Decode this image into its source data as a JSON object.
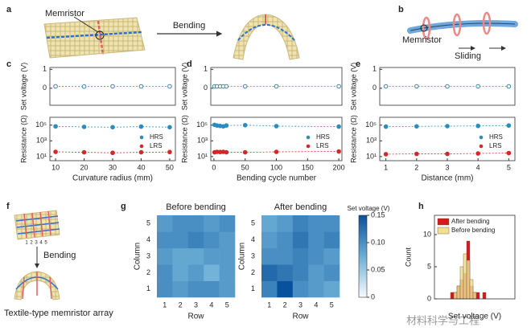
{
  "panels": {
    "labels": [
      "a",
      "b",
      "c",
      "d",
      "e",
      "f",
      "g",
      "h"
    ]
  },
  "illustrations": {
    "a_memristor": "Memristor",
    "a_bending": "Bending",
    "b_memristor": "Memristor",
    "b_sliding": "Sliding",
    "f_bending": "Bending",
    "f_caption": "Textile-type memristor array",
    "f_numbers": [
      "1",
      "2",
      "3",
      "4",
      "5"
    ]
  },
  "watermark": "材料科学与工程",
  "chart_data": [
    {
      "type": "scatter",
      "ylabel": "Set voltage (V)",
      "x": [
        10,
        20,
        30,
        40,
        50
      ],
      "values": [
        0.1,
        0.09,
        0.1,
        0.1,
        0.1
      ],
      "color": "#2b8cbe",
      "marker": "open",
      "xlim": [
        8,
        52
      ],
      "ylim": [
        -0.9,
        1.1
      ],
      "yticks": [
        0,
        1
      ]
    },
    {
      "type": "scatter",
      "ylabel": "Resistance (Ω)",
      "xlabel": "Curvature radius (mm)",
      "log": true,
      "x": [
        10,
        20,
        30,
        40,
        50
      ],
      "series": [
        {
          "name": "HRS",
          "color": "#2b8cbe",
          "values": [
            70000,
            60000,
            55000,
            65000,
            55000
          ]
        },
        {
          "name": "LRS",
          "color": "#d62728",
          "values": [
            40,
            35,
            30,
            35,
            38
          ]
        }
      ],
      "xlim": [
        8,
        52
      ],
      "xticks": [
        10,
        20,
        30,
        40,
        50
      ],
      "ylim": [
        3,
        1000000
      ],
      "yticks": [
        {
          "value": 10,
          "label": "10¹"
        },
        {
          "value": 1000,
          "label": "10³"
        },
        {
          "value": 100000,
          "label": "10⁵"
        }
      ],
      "legend": "right"
    },
    {
      "type": "scatter",
      "ylabel": "Set voltage (V)",
      "x": [
        1,
        5,
        10,
        15,
        20,
        50,
        100,
        200
      ],
      "values": [
        0.1,
        0.1,
        0.1,
        0.1,
        0.1,
        0.1,
        0.1,
        0.1
      ],
      "color": "#2b8cbe",
      "marker": "open",
      "xlim": [
        -5,
        205
      ],
      "ylim": [
        -0.9,
        1.1
      ],
      "yticks": [
        0,
        1
      ]
    },
    {
      "type": "scatter",
      "ylabel": "Resistance (Ω)",
      "xlabel": "Bending cycle number",
      "log": true,
      "x": [
        1,
        5,
        10,
        15,
        20,
        50,
        100,
        200
      ],
      "series": [
        {
          "name": "HRS",
          "color": "#2b8cbe",
          "values": [
            110000,
            90000,
            80000,
            70000,
            90000,
            100000,
            75000,
            65000
          ]
        },
        {
          "name": "LRS",
          "color": "#d62728",
          "values": [
            35,
            40,
            38,
            40,
            35,
            35,
            40,
            45
          ]
        }
      ],
      "xlim": [
        -5,
        205
      ],
      "xticks": [
        0,
        50,
        100,
        150,
        200
      ],
      "ylim": [
        3,
        1000000
      ],
      "yticks": [
        {
          "value": 10,
          "label": "10¹"
        },
        {
          "value": 1000,
          "label": "10³"
        },
        {
          "value": 100000,
          "label": "10⁵"
        }
      ],
      "legend": "right"
    },
    {
      "type": "scatter",
      "ylabel": "Set voltage (V)",
      "x": [
        1,
        2,
        3,
        4,
        5
      ],
      "values": [
        0.1,
        0.1,
        0.1,
        0.1,
        0.1
      ],
      "color": "#2b8cbe",
      "marker": "open",
      "xlim": [
        0.8,
        5.2
      ],
      "ylim": [
        -0.9,
        1.1
      ],
      "yticks": [
        0,
        1
      ]
    },
    {
      "type": "scatter",
      "ylabel": "Resistance (Ω)",
      "xlabel": "Distance (mm)",
      "log": true,
      "x": [
        1,
        2,
        3,
        4,
        5
      ],
      "series": [
        {
          "name": "HRS",
          "color": "#2b8cbe",
          "values": [
            65000,
            70000,
            75000,
            80000,
            90000
          ]
        },
        {
          "name": "LRS",
          "color": "#d62728",
          "values": [
            20,
            22,
            22,
            25,
            28
          ]
        }
      ],
      "xlim": [
        0.8,
        5.2
      ],
      "xticks": [
        1,
        2,
        3,
        4,
        5
      ],
      "ylim": [
        3,
        1000000
      ],
      "yticks": [
        {
          "value": 10,
          "label": "10¹"
        },
        {
          "value": 1000,
          "label": "10³"
        },
        {
          "value": 100000,
          "label": "10⁵"
        }
      ],
      "legend": "right"
    },
    {
      "type": "heatmap",
      "title": "Before bending",
      "xlabel": "Row",
      "ylabel": "Column",
      "x": [
        "1",
        "2",
        "3",
        "4",
        "5"
      ],
      "y": [
        "1",
        "2",
        "3",
        "4",
        "5"
      ],
      "values": [
        [
          0.1,
          0.09,
          0.1,
          0.1,
          0.09
        ],
        [
          0.1,
          0.08,
          0.09,
          0.07,
          0.09
        ],
        [
          0.09,
          0.08,
          0.08,
          0.09,
          0.09
        ],
        [
          0.1,
          0.1,
          0.11,
          0.1,
          0.09
        ],
        [
          0.09,
          0.1,
          0.1,
          0.09,
          0.1
        ]
      ]
    },
    {
      "type": "heatmap",
      "title": "After bending",
      "xlabel": "Row",
      "ylabel": "Column",
      "x": [
        "1",
        "2",
        "3",
        "4",
        "5"
      ],
      "y": [
        "1",
        "2",
        "3",
        "4",
        "5"
      ],
      "values": [
        [
          0.11,
          0.15,
          0.1,
          0.09,
          0.08
        ],
        [
          0.13,
          0.12,
          0.11,
          0.09,
          0.1
        ],
        [
          0.1,
          0.1,
          0.11,
          0.1,
          0.09
        ],
        [
          0.09,
          0.1,
          0.12,
          0.1,
          0.11
        ],
        [
          0.08,
          0.09,
          0.11,
          0.1,
          0.1
        ]
      ],
      "colorbar": {
        "label": "Set voltage (V)",
        "lim": [
          0,
          0.15
        ],
        "ticks": [
          0,
          0.05,
          {
            "value": 0.1,
            "label": "0.10"
          },
          0.15
        ],
        "cmap": [
          "#f7fbff",
          "#6baed6",
          "#08519c"
        ]
      }
    },
    {
      "type": "histogram",
      "xlabel": "Set voltage (V)",
      "ylabel": "Count",
      "bins": [
        0.05,
        0.06,
        0.07,
        0.08,
        0.09,
        0.1,
        0.11,
        0.12,
        0.13,
        0.14,
        0.15,
        0.16,
        0.17
      ],
      "series": [
        {
          "name": "After bending",
          "color": "#d7191c",
          "values": [
            1,
            1,
            2,
            3,
            4,
            9,
            2,
            1,
            1,
            0,
            1,
            0
          ]
        },
        {
          "name": "Before bending",
          "color": "#f3df8c",
          "values": [
            0,
            1,
            2,
            5,
            7,
            6,
            3,
            1,
            0,
            0,
            0,
            0
          ]
        }
      ],
      "xlim": [
        0,
        0.25
      ],
      "ylim": [
        0,
        13
      ],
      "yticks": [
        0,
        5,
        10
      ],
      "legend": "upper left"
    }
  ]
}
